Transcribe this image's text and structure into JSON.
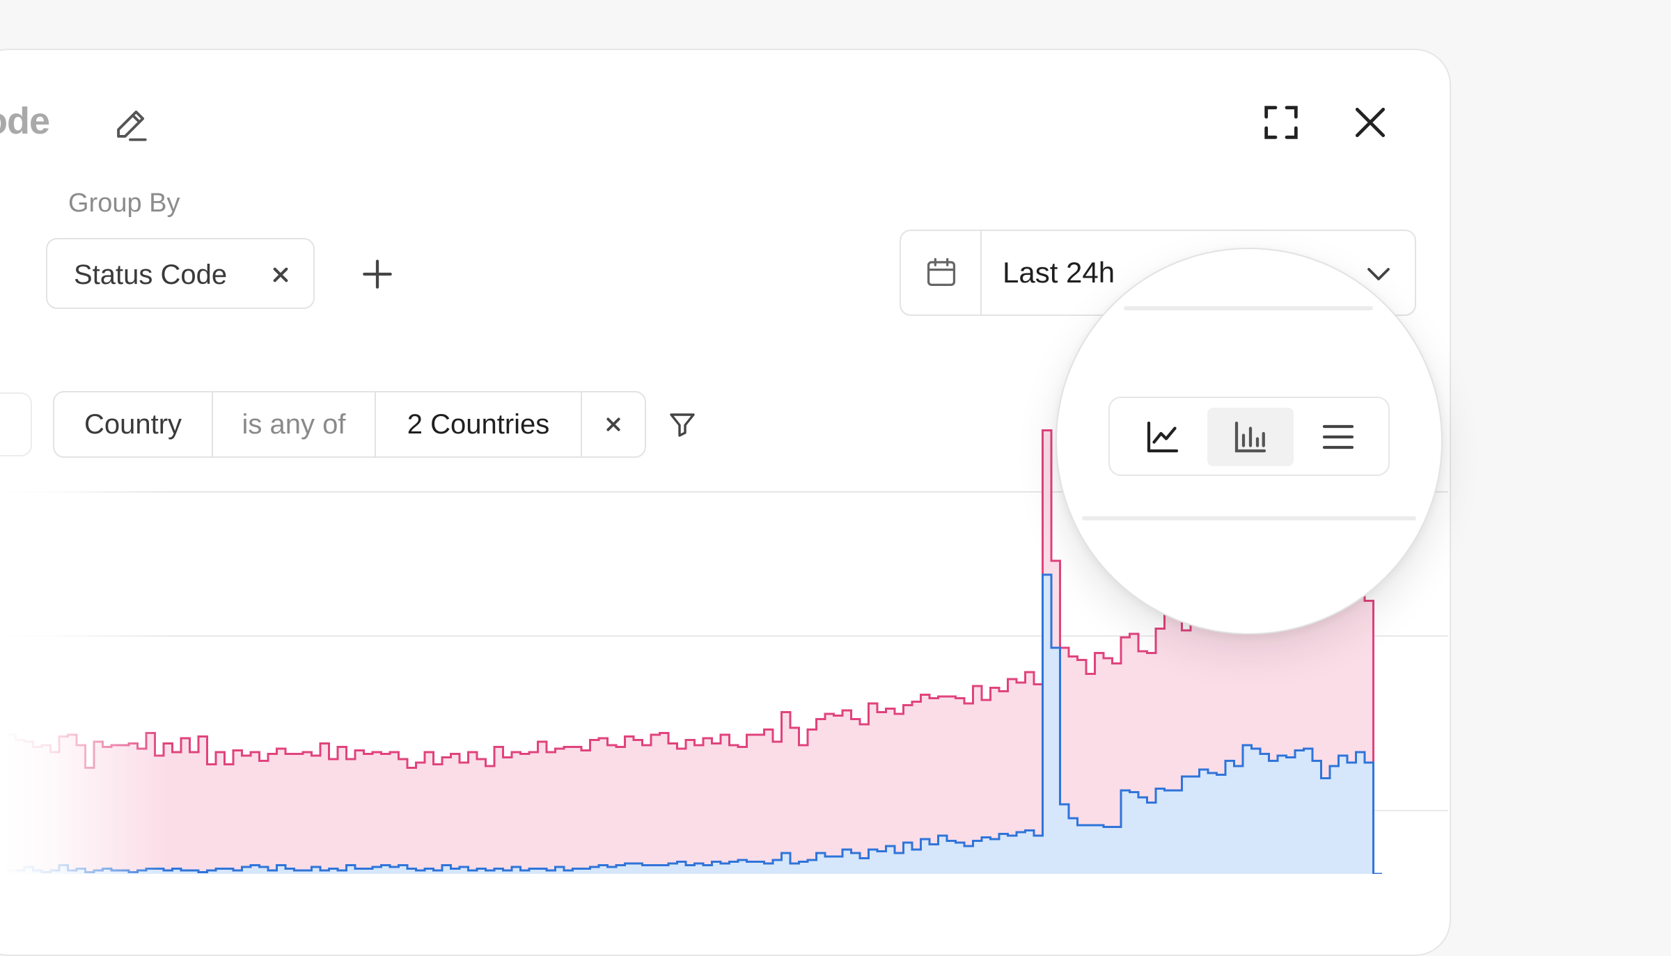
{
  "header": {
    "title": "ode",
    "edit_icon": "pencil-icon",
    "fullscreen_icon": "expand-icon",
    "close_icon": "close-icon"
  },
  "group_by": {
    "label": "Group By",
    "chips": [
      {
        "label": "Status Code",
        "remove_icon": "close-icon"
      }
    ],
    "add_icon": "plus-icon"
  },
  "date_range": {
    "icon": "calendar-icon",
    "value": "Last 24h",
    "chevron": "chevron-down-icon"
  },
  "filter": {
    "field": "Country",
    "operator": "is any of",
    "value": "2 Countries",
    "remove_icon": "close-icon",
    "filter_icon": "funnel-icon"
  },
  "view_toggle": {
    "options": [
      {
        "name": "line",
        "icon": "line-chart-icon",
        "active": false
      },
      {
        "name": "bar",
        "icon": "bar-chart-icon",
        "active": true
      },
      {
        "name": "list",
        "icon": "list-icon",
        "active": false
      }
    ]
  },
  "colors": {
    "series_a_stroke": "#e0437c",
    "series_a_fill": "#fbdde8",
    "series_b_stroke": "#2f74d9",
    "series_b_fill": "#d6e6fb",
    "gridline": "#e9e9e9"
  },
  "chart_data": {
    "type": "area",
    "step": true,
    "grid": true,
    "series": [
      {
        "values": [
          80,
          77,
          76,
          73,
          74,
          70,
          79,
          80,
          74,
          61,
          76,
          73,
          74,
          74,
          75,
          72,
          81,
          68,
          75,
          70,
          78,
          70,
          79,
          63,
          70,
          63,
          71,
          68,
          70,
          65,
          69,
          72,
          69,
          69,
          70,
          68,
          75,
          66,
          73,
          66,
          71,
          69,
          70,
          69,
          70,
          66,
          61,
          64,
          70,
          63,
          67,
          69,
          64,
          70,
          66,
          62,
          73,
          67,
          70,
          69,
          70,
          76,
          70,
          72,
          73,
          73,
          71,
          77,
          78,
          74,
          73,
          79,
          77,
          74,
          80,
          81,
          75,
          72,
          77,
          74,
          78,
          75,
          80,
          74,
          73,
          80,
          80,
          83,
          76,
          93,
          84,
          74,
          83,
          89,
          92,
          91,
          94,
          89,
          86,
          98,
          93,
          95,
          92,
          97,
          99,
          103,
          101,
          102,
          102,
          101,
          98,
          108,
          100,
          107,
          105,
          112,
          110,
          116,
          109,
          175,
          180,
          130,
          125,
          123,
          115,
          127,
          124,
          121,
          136,
          138,
          128,
          127,
          141,
          154,
          159,
          140,
          160,
          163,
          168,
          162,
          171,
          165,
          174,
          169,
          165,
          180,
          178,
          168,
          183,
          182,
          190,
          170,
          157,
          180,
          187,
          182,
          157,
          0
        ],
        "spike_index": 119,
        "spike_value": 255
      },
      {
        "values": [
          2,
          2,
          4,
          2,
          1,
          2,
          5,
          2,
          3,
          1,
          2,
          3,
          2,
          2,
          1,
          2,
          3,
          3,
          2,
          3,
          2,
          2,
          1,
          2,
          3,
          3,
          2,
          4,
          5,
          4,
          2,
          5,
          3,
          2,
          2,
          4,
          2,
          3,
          2,
          5,
          3,
          3,
          4,
          5,
          4,
          5,
          3,
          2,
          3,
          2,
          5,
          3,
          4,
          2,
          3,
          2,
          3,
          2,
          4,
          2,
          3,
          3,
          2,
          4,
          2,
          3,
          3,
          4,
          5,
          4,
          5,
          6,
          6,
          5,
          5,
          5,
          6,
          7,
          5,
          6,
          5,
          7,
          6,
          7,
          8,
          7,
          7,
          6,
          8,
          12,
          6,
          7,
          8,
          12,
          10,
          10,
          14,
          12,
          9,
          14,
          13,
          16,
          12,
          18,
          14,
          20,
          17,
          22,
          19,
          18,
          16,
          19,
          21,
          20,
          23,
          22,
          24,
          25,
          22,
          122,
          130,
          40,
          32,
          28,
          28,
          28,
          27,
          27,
          48,
          47,
          44,
          41,
          49,
          48,
          48,
          56,
          56,
          60,
          58,
          57,
          65,
          62,
          74,
          72,
          69,
          65,
          68,
          67,
          71,
          72,
          65,
          55,
          62,
          68,
          64,
          70,
          64,
          0
        ],
        "spike_index": 119,
        "spike_value": 172
      }
    ]
  }
}
